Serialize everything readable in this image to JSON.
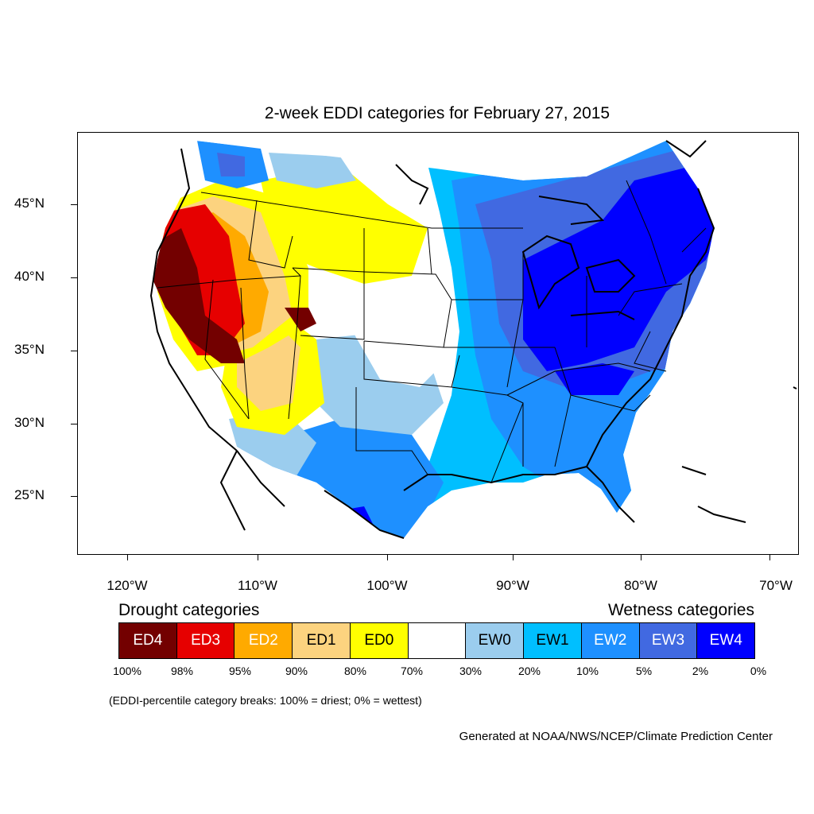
{
  "title": "2-week EDDI categories for February 27, 2015",
  "longitude_labels": [
    "120°W",
    "110°W",
    "100°W",
    "90°W",
    "80°W",
    "70°W"
  ],
  "latitude_labels": [
    "45°N",
    "40°N",
    "35°N",
    "30°N",
    "25°N"
  ],
  "legend": {
    "drought_heading": "Drought categories",
    "wetness_heading": "Wetness categories",
    "categories": [
      {
        "label": "ED4",
        "color": "#730000",
        "text_color": "#ffffff"
      },
      {
        "label": "ED3",
        "color": "#e60000",
        "text_color": "#ffffff"
      },
      {
        "label": "ED2",
        "color": "#ffaa00",
        "text_color": "#ffffff"
      },
      {
        "label": "ED1",
        "color": "#fcd37f",
        "text_color": "#000000"
      },
      {
        "label": "ED0",
        "color": "#ffff00",
        "text_color": "#000000"
      },
      {
        "label": "",
        "color": "#ffffff",
        "text_color": "#000000"
      },
      {
        "label": "EW0",
        "color": "#9bcdee",
        "text_color": "#000000"
      },
      {
        "label": "EW1",
        "color": "#00bfff",
        "text_color": "#000000"
      },
      {
        "label": "EW2",
        "color": "#1e90ff",
        "text_color": "#ffffff"
      },
      {
        "label": "EW3",
        "color": "#4169e1",
        "text_color": "#ffffff"
      },
      {
        "label": "EW4",
        "color": "#0000ff",
        "text_color": "#ffffff"
      }
    ],
    "percentile_breaks": [
      "100%",
      "98%",
      "95%",
      "90%",
      "80%",
      "70%",
      "30%",
      "20%",
      "10%",
      "5%",
      "2%",
      "0%"
    ]
  },
  "breaks_note": "(EDDI-percentile category breaks: 100% = driest; 0% = wettest)",
  "credit": "Generated at NOAA/NWS/NCEP/Climate Prediction Center"
}
